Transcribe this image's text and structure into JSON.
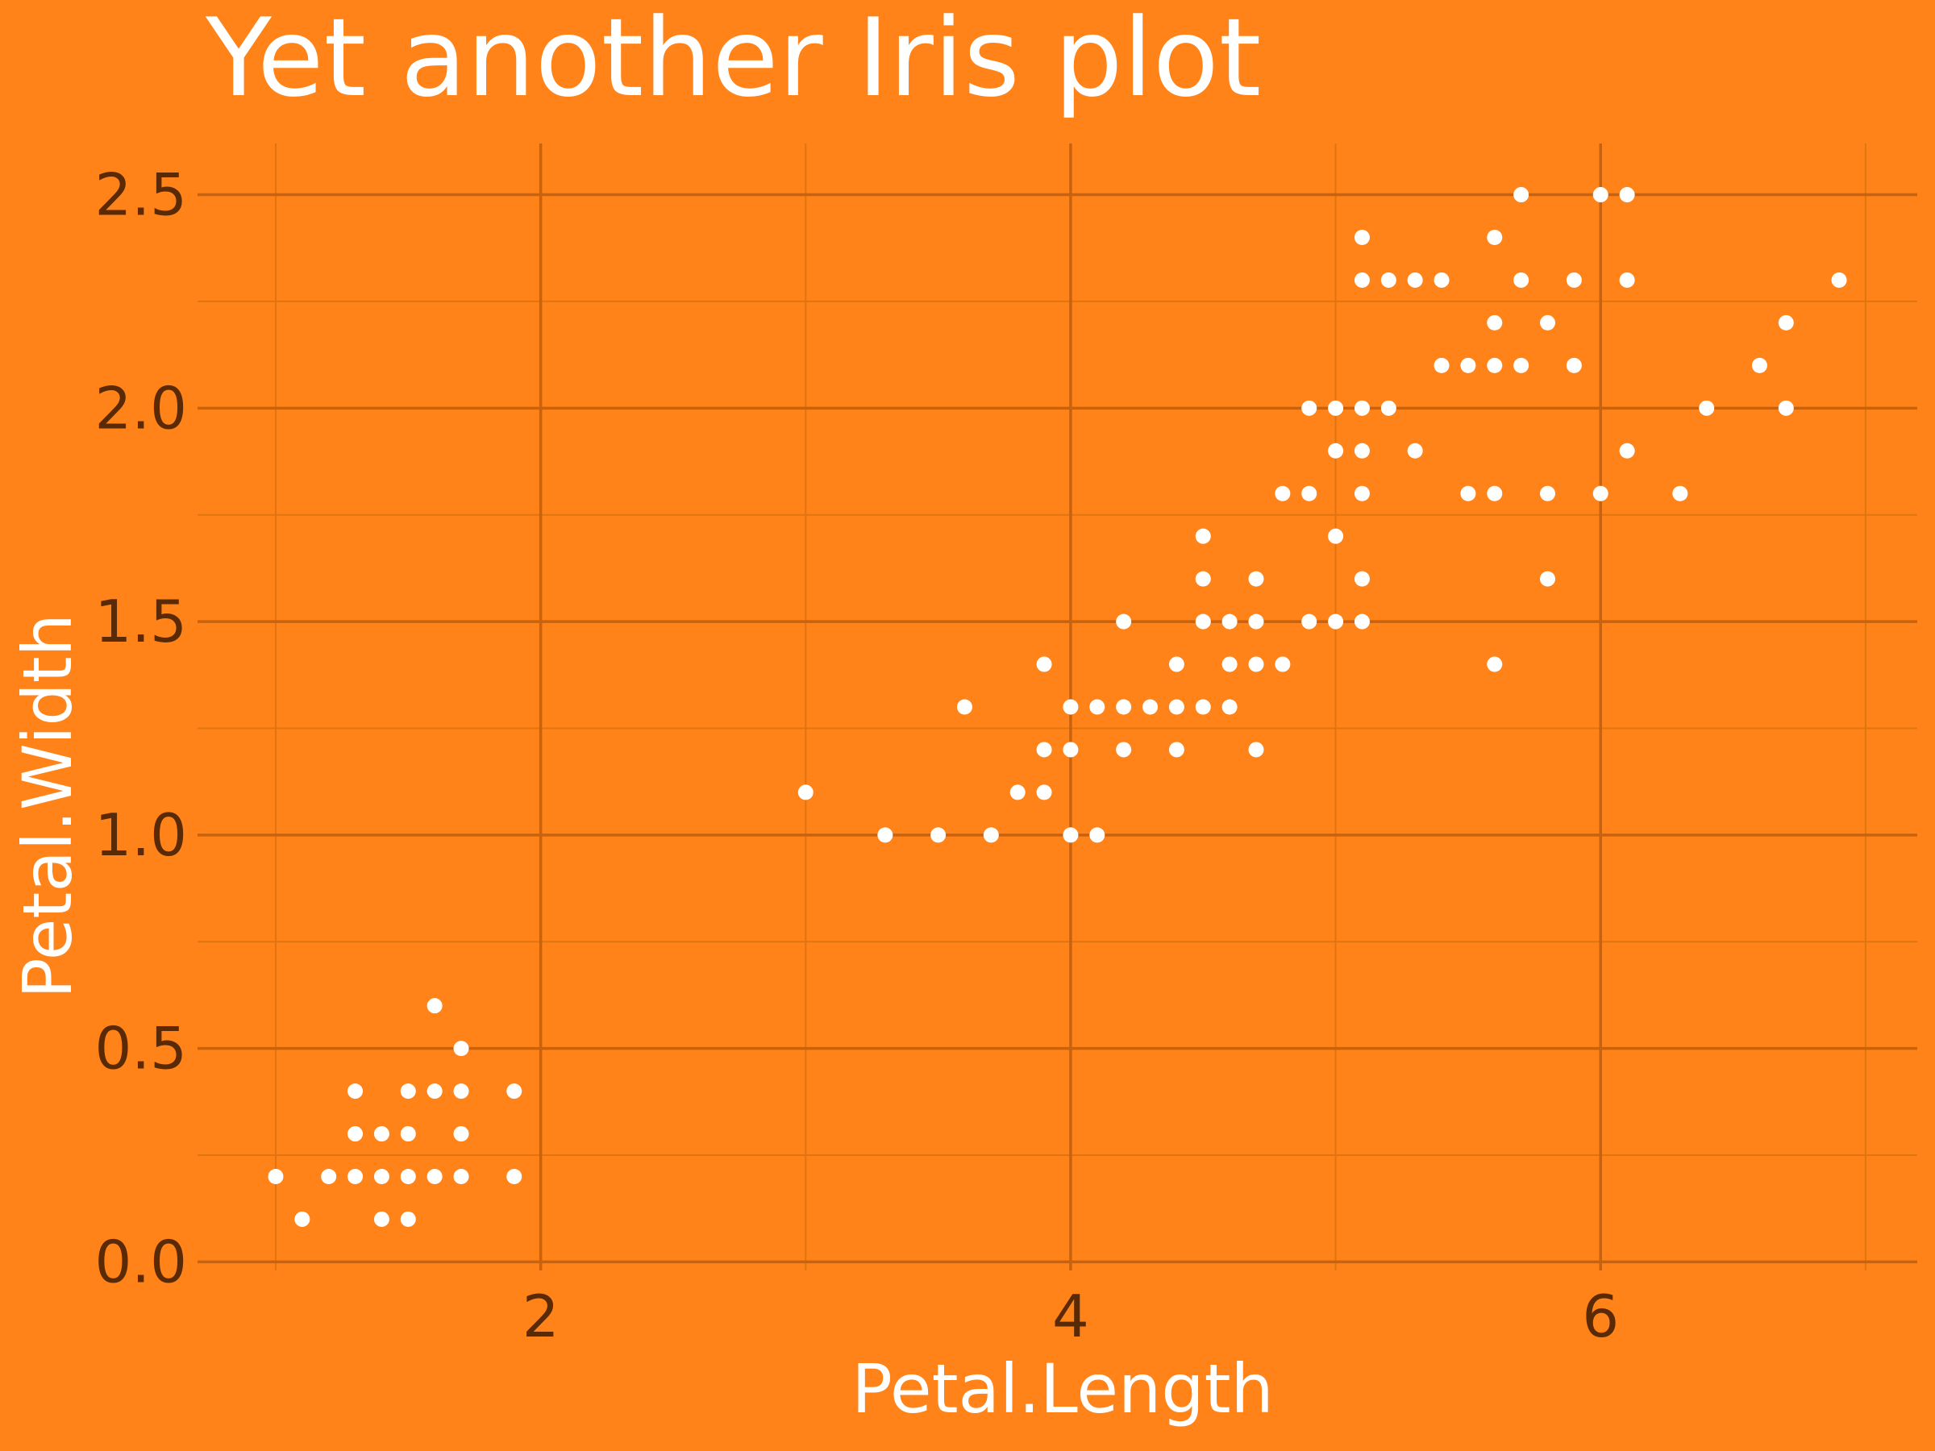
{
  "chart_data": {
    "type": "scatter",
    "title": "Yet another Iris plot",
    "xlabel": "Petal.Length",
    "ylabel": "Petal.Width",
    "xlim": [
      0.705,
      7.195
    ],
    "ylim": [
      -0.02,
      2.62
    ],
    "x_ticks": [
      2,
      4,
      6
    ],
    "x_tick_labels": [
      "2",
      "4",
      "6"
    ],
    "x_minor_ticks": [
      1,
      3,
      5,
      7
    ],
    "y_ticks": [
      0.0,
      0.5,
      1.0,
      1.5,
      2.0,
      2.5
    ],
    "y_tick_labels": [
      "0.0",
      "0.5",
      "1.0",
      "1.5",
      "2.0",
      "2.5"
    ],
    "y_minor_ticks": [
      0.25,
      0.75,
      1.25,
      1.75,
      2.25
    ],
    "grid": true,
    "legend": "none",
    "colors": {
      "background": "#FF8318",
      "points": "#FFFFFF",
      "grid": "#C8620F",
      "tick_text": "#5A2A06"
    },
    "points": [
      [
        1.0,
        0.2
      ],
      [
        1.1,
        0.1
      ],
      [
        1.2,
        0.2
      ],
      [
        1.3,
        0.2
      ],
      [
        1.3,
        0.3
      ],
      [
        1.3,
        0.4
      ],
      [
        1.4,
        0.1
      ],
      [
        1.4,
        0.2
      ],
      [
        1.4,
        0.3
      ],
      [
        1.5,
        0.1
      ],
      [
        1.5,
        0.2
      ],
      [
        1.5,
        0.3
      ],
      [
        1.5,
        0.4
      ],
      [
        1.6,
        0.2
      ],
      [
        1.6,
        0.4
      ],
      [
        1.6,
        0.6
      ],
      [
        1.7,
        0.2
      ],
      [
        1.7,
        0.3
      ],
      [
        1.7,
        0.4
      ],
      [
        1.7,
        0.5
      ],
      [
        1.9,
        0.2
      ],
      [
        1.9,
        0.4
      ],
      [
        3.0,
        1.1
      ],
      [
        3.3,
        1.0
      ],
      [
        3.5,
        1.0
      ],
      [
        3.6,
        1.3
      ],
      [
        3.7,
        1.0
      ],
      [
        3.8,
        1.1
      ],
      [
        3.9,
        1.1
      ],
      [
        3.9,
        1.2
      ],
      [
        3.9,
        1.4
      ],
      [
        4.0,
        1.0
      ],
      [
        4.0,
        1.2
      ],
      [
        4.0,
        1.3
      ],
      [
        4.1,
        1.0
      ],
      [
        4.1,
        1.3
      ],
      [
        4.2,
        1.2
      ],
      [
        4.2,
        1.3
      ],
      [
        4.2,
        1.5
      ],
      [
        4.3,
        1.3
      ],
      [
        4.4,
        1.2
      ],
      [
        4.4,
        1.3
      ],
      [
        4.4,
        1.4
      ],
      [
        4.5,
        1.3
      ],
      [
        4.5,
        1.5
      ],
      [
        4.5,
        1.6
      ],
      [
        4.5,
        1.7
      ],
      [
        4.6,
        1.3
      ],
      [
        4.6,
        1.4
      ],
      [
        4.6,
        1.5
      ],
      [
        4.7,
        1.2
      ],
      [
        4.7,
        1.4
      ],
      [
        4.7,
        1.5
      ],
      [
        4.7,
        1.6
      ],
      [
        4.8,
        1.4
      ],
      [
        4.8,
        1.8
      ],
      [
        4.9,
        1.5
      ],
      [
        4.9,
        1.8
      ],
      [
        4.9,
        2.0
      ],
      [
        5.0,
        1.5
      ],
      [
        5.0,
        1.7
      ],
      [
        5.0,
        1.9
      ],
      [
        5.0,
        2.0
      ],
      [
        5.1,
        1.5
      ],
      [
        5.1,
        1.6
      ],
      [
        5.1,
        1.8
      ],
      [
        5.1,
        1.9
      ],
      [
        5.1,
        2.0
      ],
      [
        5.1,
        2.3
      ],
      [
        5.1,
        2.4
      ],
      [
        5.2,
        2.0
      ],
      [
        5.2,
        2.3
      ],
      [
        5.3,
        1.9
      ],
      [
        5.3,
        2.3
      ],
      [
        5.4,
        2.1
      ],
      [
        5.4,
        2.3
      ],
      [
        5.5,
        1.8
      ],
      [
        5.5,
        2.1
      ],
      [
        5.6,
        1.4
      ],
      [
        5.6,
        1.8
      ],
      [
        5.6,
        2.1
      ],
      [
        5.6,
        2.2
      ],
      [
        5.6,
        2.4
      ],
      [
        5.7,
        2.1
      ],
      [
        5.7,
        2.3
      ],
      [
        5.7,
        2.5
      ],
      [
        5.8,
        1.6
      ],
      [
        5.8,
        1.8
      ],
      [
        5.8,
        2.2
      ],
      [
        5.9,
        2.1
      ],
      [
        5.9,
        2.3
      ],
      [
        6.0,
        1.8
      ],
      [
        6.0,
        2.5
      ],
      [
        6.1,
        1.9
      ],
      [
        6.1,
        2.3
      ],
      [
        6.1,
        2.5
      ],
      [
        6.3,
        1.8
      ],
      [
        6.4,
        2.0
      ],
      [
        6.6,
        2.1
      ],
      [
        6.7,
        2.0
      ],
      [
        6.7,
        2.2
      ],
      [
        6.9,
        2.3
      ]
    ]
  }
}
